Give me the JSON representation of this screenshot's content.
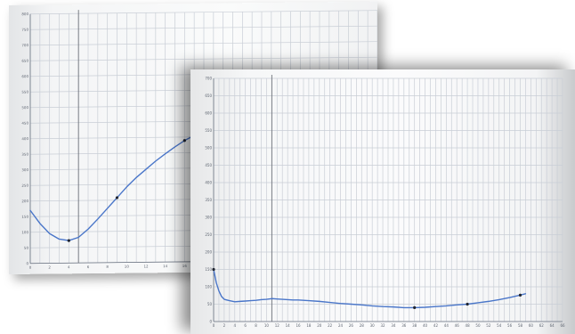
{
  "chart_data": [
    {
      "type": "line",
      "title": "",
      "xlabel": "",
      "ylabel": "",
      "xlim": [
        0,
        36
      ],
      "ylim": [
        0,
        800
      ],
      "x_ticks": [
        0,
        2,
        4,
        6,
        8,
        10,
        12,
        14,
        16,
        18,
        20,
        22,
        24,
        26,
        28,
        30,
        32,
        34,
        36
      ],
      "y_ticks": [
        0,
        50,
        100,
        150,
        200,
        250,
        300,
        350,
        400,
        450,
        500,
        550,
        600,
        650,
        700,
        750,
        800
      ],
      "grid": true,
      "marker_line_x": 5,
      "series": [
        {
          "color": "#4a76c9",
          "x": [
            0,
            1,
            2,
            3,
            4,
            5,
            6,
            7,
            8,
            9,
            10,
            11,
            12,
            13,
            14,
            15,
            16,
            17,
            18,
            19,
            20,
            21,
            22,
            23,
            24,
            25,
            26,
            27,
            28,
            29,
            30,
            31,
            32,
            33,
            34,
            35,
            36
          ],
          "y": [
            170,
            128,
            95,
            77,
            72,
            82,
            108,
            140,
            174,
            208,
            242,
            272,
            298,
            324,
            347,
            369,
            389,
            405,
            420,
            434,
            445,
            456,
            466,
            475,
            484,
            492,
            498,
            504,
            508,
            512,
            516,
            519,
            522,
            525,
            527,
            529,
            531
          ],
          "points": [
            {
              "x": 4,
              "y": 72
            },
            {
              "x": 9,
              "y": 208
            },
            {
              "x": 16,
              "y": 389
            },
            {
              "x": 24,
              "y": 484
            }
          ]
        }
      ]
    },
    {
      "type": "line",
      "title": "",
      "xlabel": "",
      "ylabel": "",
      "xlim": [
        0,
        66
      ],
      "ylim": [
        0,
        700
      ],
      "x_ticks": [
        0,
        2,
        4,
        6,
        8,
        10,
        12,
        14,
        16,
        18,
        20,
        22,
        24,
        26,
        28,
        30,
        32,
        34,
        36,
        38,
        40,
        42,
        44,
        46,
        48,
        50,
        52,
        54,
        56,
        58,
        60,
        62,
        64,
        66
      ],
      "y_ticks": [
        0,
        50,
        100,
        150,
        200,
        250,
        300,
        350,
        400,
        450,
        500,
        550,
        600,
        650,
        700
      ],
      "grid": true,
      "marker_line_x": 11,
      "series": [
        {
          "color": "#4a76c9",
          "x": [
            0,
            0.5,
            1,
            1.5,
            2,
            3,
            4,
            5,
            6,
            7,
            8,
            9,
            10,
            11,
            12,
            13,
            14,
            15,
            16,
            17,
            18,
            20,
            22,
            24,
            26,
            28,
            30,
            32,
            34,
            36,
            38,
            40,
            42,
            44,
            46,
            48,
            50,
            52,
            54,
            56,
            58,
            59
          ],
          "y": [
            150,
            112,
            88,
            72,
            64,
            60,
            57,
            58,
            59,
            60,
            61,
            63,
            64,
            66,
            65,
            64,
            63,
            62,
            62,
            61,
            60,
            58,
            55,
            52,
            50,
            48,
            45,
            43,
            42,
            40,
            40,
            41,
            43,
            45,
            48,
            50,
            54,
            58,
            63,
            69,
            76,
            80
          ],
          "points": [
            {
              "x": 0,
              "y": 150
            },
            {
              "x": 38,
              "y": 40
            },
            {
              "x": 48,
              "y": 50
            },
            {
              "x": 58,
              "y": 76
            }
          ]
        }
      ]
    }
  ]
}
